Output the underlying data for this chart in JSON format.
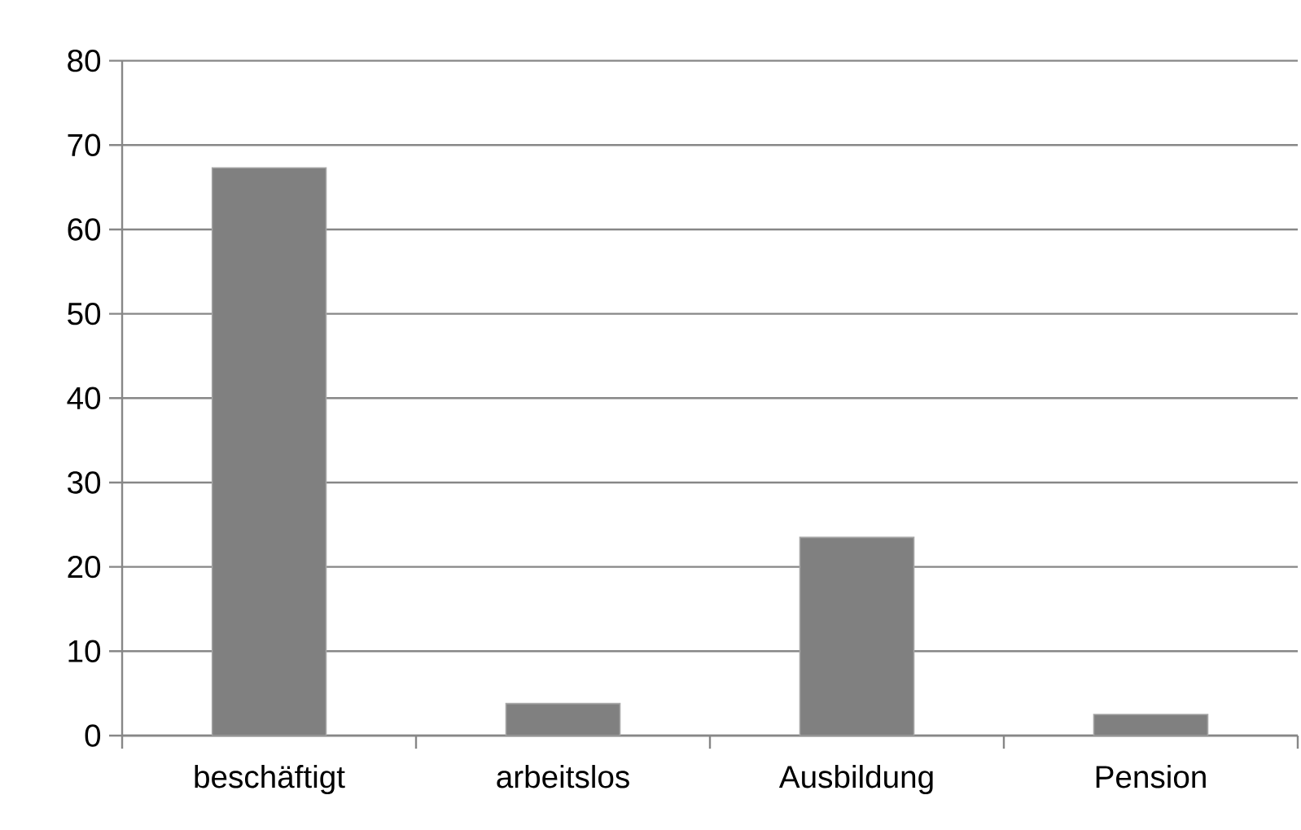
{
  "chart_data": {
    "type": "bar",
    "categories": [
      "beschäftigt",
      "arbeitslos",
      "Ausbildung",
      "Pension"
    ],
    "values": [
      67.3,
      3.8,
      23.5,
      2.5
    ],
    "color": "#808080",
    "ylim": [
      0,
      80
    ],
    "yticks": [
      0,
      10,
      20,
      30,
      40,
      50,
      60,
      70,
      80
    ],
    "grid": "y"
  }
}
